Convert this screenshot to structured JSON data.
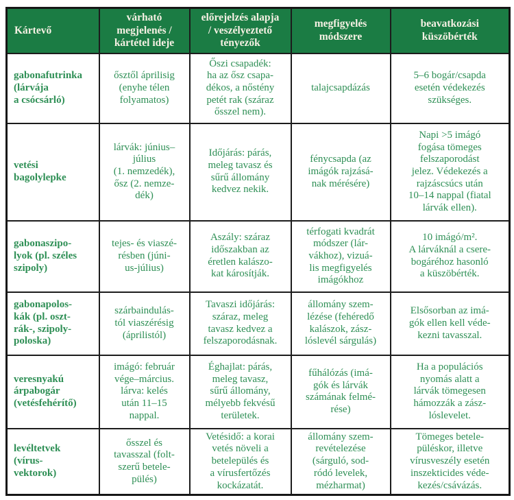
{
  "colors": {
    "header_background": "#1b7c44",
    "header_text": "#f6f1e4",
    "body_text": "#2e8f55",
    "border": "#1c1c1c",
    "page_background": "#ffffff"
  },
  "table": {
    "headers": [
      [
        "Kártevő"
      ],
      [
        "várható",
        "megjelenés /",
        "kártétel ideje"
      ],
      [
        "előrejelzés alapja",
        "/ veszélyeztető",
        "tényezők"
      ],
      [
        "megfigyelés",
        "módszere"
      ],
      [
        "beavatkozási",
        "küszöbérték"
      ]
    ],
    "rows": [
      {
        "pest": [
          "gabonafutrinka",
          "(lárvája",
          "a csócsárló)"
        ],
        "timing": [
          "ősztől áprilisig",
          "(enyhe télen",
          "folyamatos)"
        ],
        "forecast": [
          "Őszi csapadék:",
          "ha az ősz csapa-",
          "dékos, a nőstény",
          "petét rak (száraz",
          "ősszel nem)."
        ],
        "observation": [
          "talajcsapdázás"
        ],
        "threshold": [
          "5–6 bogár/csapda",
          "esetén védekezés",
          "szükséges."
        ]
      },
      {
        "pest": [
          "vetési",
          "bagolylepke"
        ],
        "timing": [
          "lárvák: június–",
          "július",
          "(1. nemzedék),",
          "ősz (2. nemze-",
          "dék)"
        ],
        "forecast": [
          "Időjárás: párás,",
          "meleg tavasz és",
          "sűrű állomány",
          "kedvez nekik."
        ],
        "observation": [
          "fénycsapda (az",
          "imágók rajzásá-",
          "nak mérésére)"
        ],
        "threshold": [
          "Napi >5 imágó",
          "fogása tömeges",
          "felszaporodást",
          "jelez. Védekezés a",
          "rajzáscsúcs után",
          "10–14 nappal (fiatal",
          "lárvák ellen)."
        ]
      },
      {
        "pest": [
          "gabonaszipo-",
          "lyok (pl. széles",
          "szipoly)"
        ],
        "timing": [
          "tejes- és viaszé-",
          "résben (júni-",
          "us-július)"
        ],
        "forecast": [
          "Aszály: száraz",
          "időszakban az",
          "éretlen kalászo-",
          "kat károsítják."
        ],
        "observation": [
          "térfogati kvadrát",
          "módszer (lár-",
          "vákhoz), vizuá-",
          "lis megfigyelés",
          "imágókhoz"
        ],
        "threshold": [
          "10 imágó/m².",
          "A lárváknál a csere-",
          "bogáréhoz hasonló",
          "a küszöbérték."
        ]
      },
      {
        "pest": [
          "gabonapolos-",
          "kák (pl. oszt-",
          "rák-, szipoly-",
          "poloska)"
        ],
        "timing": [
          "szárbaindulás-",
          "tól viaszérésig",
          "(áprilistól)"
        ],
        "forecast": [
          "Tavaszi időjárás:",
          "száraz, meleg",
          "tavasz kedvez a",
          "felszaporodásnak."
        ],
        "observation": [
          "állomány szem-",
          "lézése (fehéredő",
          "kalászok, zász-",
          "lóslevél sárgulás)"
        ],
        "threshold": [
          "Elsősorban az imá-",
          "gók ellen kell véde-",
          "kezni tavasszal."
        ]
      },
      {
        "pest": [
          "veresnyakú",
          "árpabogár",
          "(vetésfehérítő)"
        ],
        "timing": [
          "imágó: február",
          "vége–március.",
          "lárva: kelés",
          "után 11–15",
          "nappal."
        ],
        "forecast": [
          "Éghajlat: párás,",
          "meleg tavasz,",
          "sűrű állomány,",
          "mélyebb fekvésű",
          "területek."
        ],
        "observation": [
          "fűhálózás (imá-",
          "gók és lárvák",
          "számának felmé-",
          "rése)"
        ],
        "threshold": [
          "Ha a populációs",
          "nyomás alatt a",
          "lárvák tömegesen",
          "hámozzák a zász-",
          "lóslevelet."
        ]
      },
      {
        "pest": [
          "levéltetvek",
          "(vírus-",
          "vektorok)"
        ],
        "timing": [
          "ősszel és",
          "tavasszal (folt-",
          "szerű betele-",
          "pülés)"
        ],
        "forecast": [
          "Vetésidő: a korai",
          "vetés növeli a",
          "betelepülés és",
          "a vírusfertőzés",
          "kockázatát."
        ],
        "observation": [
          "állomány szem-",
          "revételezése",
          "(sárguló, sod-",
          "ródó levelek,",
          "mézharmat)"
        ],
        "threshold": [
          "Tömeges betele-",
          "püléskor, illetve",
          "vírusveszély esetén",
          "inszekticides véde-",
          "kezés/csávázás."
        ]
      }
    ]
  }
}
